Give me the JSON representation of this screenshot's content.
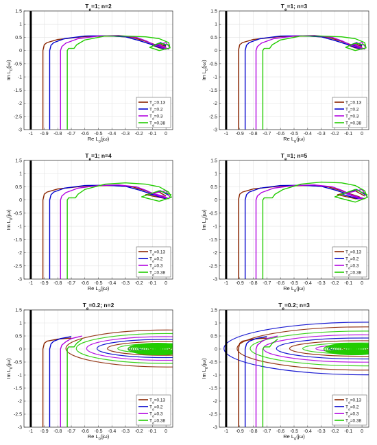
{
  "figure": {
    "xlabel": "Re L",
    "xlabel_sub": "0",
    "xlabel_tail": "(jω)",
    "ylabel": "Im L",
    "ylabel_sub": "0",
    "ylabel_tail": "(jω)",
    "legend_prefix": "T",
    "legend_sub": "d"
  },
  "chart_data": [
    {
      "type": "line",
      "title_main": "T",
      "title_sub": "e",
      "title_rest": "=1; n=2",
      "xlim": [
        -1.05,
        0.05
      ],
      "ylim": [
        -3,
        1.5
      ],
      "xticks": [
        "-1",
        "-0.9",
        "-0.8",
        "-0.7",
        "-0.6",
        "-0.5",
        "-0.4",
        "-0.3",
        "-0.2",
        "-0.1",
        "0"
      ],
      "yticks": [
        "1.5",
        "1",
        "0.5",
        "0",
        "-0.5",
        "-1",
        "-1.5",
        "-2",
        "-2.5",
        "-3"
      ],
      "grid": true,
      "legend": "bottom-right",
      "vertical_line_x": -1,
      "series": [
        {
          "name": "=0.13",
          "color": "#8b2500",
          "x": [
            -0.91,
            -0.91,
            -0.9,
            -0.88,
            -0.8,
            -0.6,
            -0.4,
            -0.25,
            -0.15,
            -0.08,
            -0.02,
            0.0,
            -0.05,
            -0.1,
            -0.05,
            0.0
          ],
          "y": [
            -3,
            0.0,
            0.22,
            0.3,
            0.42,
            0.53,
            0.55,
            0.5,
            0.35,
            0.22,
            0.12,
            0.05,
            0.1,
            0.2,
            0.25,
            0.15
          ]
        },
        {
          "name": "=0.2",
          "color": "#0000cc",
          "x": [
            -0.86,
            -0.86,
            -0.85,
            -0.83,
            -0.75,
            -0.6,
            -0.45,
            -0.3,
            -0.2,
            -0.12,
            -0.05,
            0.0,
            -0.03,
            -0.08,
            -0.04,
            0.0
          ],
          "y": [
            -3,
            0.0,
            0.2,
            0.3,
            0.45,
            0.55,
            0.56,
            0.52,
            0.38,
            0.25,
            0.12,
            0.05,
            0.12,
            0.22,
            0.3,
            0.18
          ]
        },
        {
          "name": "=0.3",
          "color": "#b000e0",
          "x": [
            -0.78,
            -0.78,
            -0.77,
            -0.74,
            -0.65,
            -0.5,
            -0.35,
            -0.22,
            -0.14,
            -0.08,
            -0.02,
            0.02,
            -0.02,
            -0.06,
            0.0,
            0.03
          ],
          "y": [
            -3,
            0.0,
            0.15,
            0.28,
            0.45,
            0.55,
            0.57,
            0.5,
            0.35,
            0.2,
            0.1,
            0.05,
            0.15,
            0.22,
            0.3,
            0.1
          ]
        },
        {
          "name": "=0.38",
          "color": "#22cc00",
          "x": [
            -0.73,
            -0.73,
            -0.72,
            -0.68,
            -0.66,
            -0.6,
            -0.45,
            -0.3,
            -0.15,
            -0.05,
            0.02,
            0.03,
            -0.05,
            -0.12,
            -0.05,
            0.03
          ],
          "y": [
            -3,
            0.0,
            0.08,
            0.08,
            0.22,
            0.4,
            0.55,
            0.55,
            0.52,
            0.45,
            0.3,
            0.1,
            0.0,
            0.12,
            0.28,
            0.2
          ]
        }
      ]
    },
    {
      "type": "line",
      "title_main": "T",
      "title_sub": "e",
      "title_rest": "=1; n=3",
      "xlim": [
        -1.05,
        0.05
      ],
      "ylim": [
        -3,
        1.5
      ],
      "xticks": [
        "-1",
        "-0.9",
        "-0.8",
        "-0.7",
        "-0.6",
        "-0.5",
        "-0.4",
        "-0.3",
        "-0.2",
        "-0.1",
        "0"
      ],
      "yticks": [
        "1.5",
        "1",
        "0.5",
        "0",
        "-0.5",
        "-1",
        "-1.5",
        "-2",
        "-2.5",
        "-3"
      ],
      "grid": true,
      "legend": "bottom-right",
      "vertical_line_x": -1,
      "series": [
        {
          "name": "=0.13",
          "color": "#8b2500",
          "x": [
            -0.91,
            -0.91,
            -0.9,
            -0.88,
            -0.8,
            -0.6,
            -0.4,
            -0.25,
            -0.15,
            -0.08,
            -0.02,
            0.0,
            -0.05,
            -0.1,
            -0.05,
            0.0
          ],
          "y": [
            -3,
            0.0,
            0.22,
            0.3,
            0.42,
            0.53,
            0.55,
            0.5,
            0.35,
            0.22,
            0.12,
            0.05,
            0.1,
            0.2,
            0.25,
            0.15
          ]
        },
        {
          "name": "=0.2",
          "color": "#0000cc",
          "x": [
            -0.86,
            -0.86,
            -0.85,
            -0.83,
            -0.75,
            -0.6,
            -0.45,
            -0.3,
            -0.2,
            -0.12,
            -0.05,
            0.0,
            -0.03,
            -0.08,
            -0.04,
            0.0
          ],
          "y": [
            -3,
            0.0,
            0.2,
            0.3,
            0.45,
            0.55,
            0.56,
            0.52,
            0.38,
            0.25,
            0.12,
            0.05,
            0.12,
            0.22,
            0.3,
            0.18
          ]
        },
        {
          "name": "=0.3",
          "color": "#b000e0",
          "x": [
            -0.78,
            -0.78,
            -0.77,
            -0.74,
            -0.65,
            -0.5,
            -0.35,
            -0.22,
            -0.14,
            -0.08,
            -0.02,
            0.02,
            -0.02,
            -0.06,
            0.0,
            0.03
          ],
          "y": [
            -3,
            0.0,
            0.15,
            0.28,
            0.45,
            0.55,
            0.57,
            0.5,
            0.35,
            0.2,
            0.1,
            0.05,
            0.15,
            0.22,
            0.3,
            0.1
          ]
        },
        {
          "name": "=0.38",
          "color": "#22cc00",
          "x": [
            -0.73,
            -0.73,
            -0.72,
            -0.68,
            -0.66,
            -0.6,
            -0.45,
            -0.3,
            -0.15,
            -0.05,
            0.02,
            0.03,
            -0.05,
            -0.12,
            -0.05,
            0.03
          ],
          "y": [
            -3,
            0.0,
            0.08,
            0.08,
            0.22,
            0.4,
            0.55,
            0.55,
            0.52,
            0.45,
            0.3,
            0.1,
            0.0,
            0.12,
            0.28,
            0.2
          ]
        }
      ]
    },
    {
      "type": "line",
      "title_main": "T",
      "title_sub": "e",
      "title_rest": "=1; n=4",
      "xlim": [
        -1.05,
        0.05
      ],
      "ylim": [
        -3,
        1.5
      ],
      "xticks": [
        "-1",
        "-0.9",
        "-0.8",
        "-0.7",
        "-0.6",
        "-0.5",
        "-0.4",
        "-0.3",
        "-0.2",
        "-0.1",
        "0"
      ],
      "yticks": [
        "1.5",
        "1",
        "0.5",
        "0",
        "-0.5",
        "-1",
        "-1.5",
        "-2",
        "-2.5",
        "-3"
      ],
      "grid": true,
      "legend": "bottom-right",
      "vertical_line_x": -1,
      "series": [
        {
          "name": "=0.13",
          "color": "#8b2500",
          "x": [
            -0.91,
            -0.91,
            -0.9,
            -0.88,
            -0.8,
            -0.6,
            -0.4,
            -0.25,
            -0.15,
            -0.08,
            -0.02,
            0.0,
            -0.05,
            -0.15,
            -0.05,
            0.0
          ],
          "y": [
            -3,
            0.0,
            0.22,
            0.3,
            0.42,
            0.53,
            0.55,
            0.5,
            0.35,
            0.22,
            0.12,
            0.05,
            0.1,
            0.2,
            0.3,
            0.15
          ]
        },
        {
          "name": "=0.2",
          "color": "#0000cc",
          "x": [
            -0.86,
            -0.86,
            -0.85,
            -0.83,
            -0.75,
            -0.6,
            -0.45,
            -0.3,
            -0.2,
            -0.12,
            -0.05,
            0.0,
            -0.03,
            -0.12,
            -0.04,
            0.02
          ],
          "y": [
            -3,
            0.0,
            0.2,
            0.3,
            0.45,
            0.55,
            0.56,
            0.52,
            0.38,
            0.25,
            0.12,
            0.05,
            0.12,
            0.22,
            0.35,
            0.18
          ]
        },
        {
          "name": "=0.3",
          "color": "#b000e0",
          "x": [
            -0.78,
            -0.78,
            -0.77,
            -0.74,
            -0.65,
            -0.5,
            -0.35,
            -0.22,
            -0.14,
            -0.08,
            -0.02,
            0.02,
            -0.02,
            -0.1,
            0.0,
            0.03
          ],
          "y": [
            -3,
            0.0,
            0.15,
            0.28,
            0.45,
            0.55,
            0.57,
            0.5,
            0.35,
            0.2,
            0.1,
            0.05,
            0.15,
            0.25,
            0.35,
            0.1
          ]
        },
        {
          "name": "=0.38",
          "color": "#22cc00",
          "x": [
            -0.73,
            -0.73,
            -0.72,
            -0.67,
            -0.65,
            -0.6,
            -0.45,
            -0.3,
            -0.15,
            -0.05,
            0.02,
            0.04,
            -0.05,
            -0.18,
            -0.05,
            0.04
          ],
          "y": [
            -3,
            0.0,
            0.08,
            0.08,
            0.22,
            0.4,
            0.6,
            0.65,
            0.6,
            0.5,
            0.3,
            0.1,
            -0.05,
            0.12,
            0.35,
            0.2
          ]
        }
      ]
    },
    {
      "type": "line",
      "title_main": "T",
      "title_sub": "e",
      "title_rest": "=1; n=5",
      "xlim": [
        -1.05,
        0.05
      ],
      "ylim": [
        -3,
        1.5
      ],
      "xticks": [
        "-1",
        "-0.9",
        "-0.8",
        "-0.7",
        "-0.6",
        "-0.5",
        "-0.4",
        "-0.3",
        "-0.2",
        "-0.1",
        "0"
      ],
      "yticks": [
        "1.5",
        "1",
        "0.5",
        "0",
        "-0.5",
        "-1",
        "-1.5",
        "-2",
        "-2.5",
        "-3"
      ],
      "grid": true,
      "legend": "bottom-right",
      "vertical_line_x": -1,
      "series": [
        {
          "name": "=0.13",
          "color": "#8b2500",
          "x": [
            -0.91,
            -0.91,
            -0.9,
            -0.88,
            -0.8,
            -0.6,
            -0.4,
            -0.25,
            -0.15,
            -0.08,
            -0.02,
            0.0,
            -0.05,
            -0.18,
            -0.05,
            0.02
          ],
          "y": [
            -3,
            0.0,
            0.22,
            0.3,
            0.42,
            0.53,
            0.55,
            0.5,
            0.35,
            0.22,
            0.12,
            0.05,
            0.05,
            0.2,
            0.35,
            0.15
          ]
        },
        {
          "name": "=0.2",
          "color": "#0000cc",
          "x": [
            -0.86,
            -0.86,
            -0.85,
            -0.83,
            -0.75,
            -0.6,
            -0.45,
            -0.3,
            -0.2,
            -0.12,
            -0.05,
            0.0,
            -0.03,
            -0.15,
            -0.04,
            0.03
          ],
          "y": [
            -3,
            0.0,
            0.2,
            0.3,
            0.45,
            0.55,
            0.56,
            0.52,
            0.38,
            0.25,
            0.12,
            0.05,
            0.05,
            0.22,
            0.4,
            0.18
          ]
        },
        {
          "name": "=0.3",
          "color": "#b000e0",
          "x": [
            -0.78,
            -0.78,
            -0.77,
            -0.74,
            -0.65,
            -0.5,
            -0.35,
            -0.22,
            -0.14,
            -0.08,
            -0.02,
            0.02,
            -0.02,
            -0.12,
            0.0,
            0.04
          ],
          "y": [
            -3,
            0.0,
            0.15,
            0.28,
            0.45,
            0.55,
            0.57,
            0.5,
            0.35,
            0.2,
            0.1,
            0.05,
            0.05,
            0.25,
            0.4,
            0.1
          ]
        },
        {
          "name": "=0.38",
          "color": "#22cc00",
          "x": [
            -0.73,
            -0.73,
            -0.72,
            -0.66,
            -0.64,
            -0.58,
            -0.45,
            -0.3,
            -0.15,
            -0.05,
            0.02,
            0.04,
            -0.05,
            -0.2,
            -0.05,
            0.04
          ],
          "y": [
            -3,
            0.0,
            0.08,
            0.08,
            0.22,
            0.4,
            0.6,
            0.68,
            0.65,
            0.55,
            0.35,
            0.1,
            -0.08,
            0.12,
            0.4,
            0.2
          ]
        }
      ]
    },
    {
      "type": "line",
      "title_main": "T",
      "title_sub": "e",
      "title_rest": "=0.2; n=2",
      "xlim": [
        -1.05,
        0.05
      ],
      "ylim": [
        -3,
        1.5
      ],
      "xticks": [
        "-1",
        "-0.9",
        "-0.8",
        "-0.7",
        "-0.6",
        "-0.5",
        "-0.4",
        "-0.3",
        "-0.2",
        "-0.1",
        "0"
      ],
      "yticks": [
        "1.5",
        "1",
        "0.5",
        "0",
        "-0.5",
        "-1",
        "-1.5",
        "-2",
        "-2.5",
        "-3"
      ],
      "grid": true,
      "legend": "bottom-right",
      "vertical_line_x": -1,
      "spiral": {
        "count": 9,
        "center_x": -0.05,
        "max_rx": 0.75,
        "max_ry": 0.65
      },
      "series": [
        {
          "name": "=0.13",
          "color": "#8b2500",
          "x": [
            -0.91,
            -0.91,
            -0.9,
            -0.88,
            -0.8,
            -0.7
          ],
          "y": [
            -3,
            0.0,
            0.22,
            0.3,
            0.38,
            0.42
          ]
        },
        {
          "name": "=0.2",
          "color": "#0000cc",
          "x": [
            -0.86,
            -0.86,
            -0.85,
            -0.83,
            -0.78,
            -0.7
          ],
          "y": [
            -3,
            0.0,
            0.2,
            0.3,
            0.4,
            0.48
          ]
        },
        {
          "name": "=0.3",
          "color": "#b000e0",
          "x": [
            -0.78,
            -0.78,
            -0.77,
            -0.74,
            -0.7,
            -0.62
          ],
          "y": [
            -3,
            0.0,
            0.15,
            0.28,
            0.4,
            0.5
          ]
        },
        {
          "name": "=0.38",
          "color": "#22cc00",
          "x": [
            -0.73,
            -0.73,
            -0.72,
            -0.68,
            -0.66,
            -0.62
          ],
          "y": [
            -3,
            0.0,
            0.08,
            0.08,
            0.22,
            0.38
          ]
        }
      ]
    },
    {
      "type": "line",
      "title_main": "T",
      "title_sub": "e",
      "title_rest": "=0.2; n=3",
      "xlim": [
        -1.05,
        0.05
      ],
      "ylim": [
        -3,
        1.5
      ],
      "xticks": [
        "-1",
        "-0.9",
        "-0.8",
        "-0.7",
        "-0.6",
        "-0.5",
        "-0.4",
        "-0.3",
        "-0.2",
        "-0.1",
        "0"
      ],
      "yticks": [
        "1.5",
        "1",
        "0.5",
        "0",
        "-0.5",
        "-1",
        "-1.5",
        "-2",
        "-2.5",
        "-3"
      ],
      "grid": true,
      "legend": "bottom-right",
      "vertical_line_x": -1,
      "spiral": {
        "count": 10,
        "center_x": -0.05,
        "max_rx": 1.05,
        "max_ry": 0.95
      },
      "series": [
        {
          "name": "=0.13",
          "color": "#8b2500",
          "x": [
            -0.91,
            -0.91,
            -0.9,
            -0.88,
            -0.8,
            -0.7
          ],
          "y": [
            -3,
            0.0,
            0.22,
            0.3,
            0.38,
            0.42
          ]
        },
        {
          "name": "=0.2",
          "color": "#0000cc",
          "x": [
            -0.86,
            -0.86,
            -0.85,
            -0.83,
            -0.78,
            -0.7
          ],
          "y": [
            -3,
            0.0,
            0.2,
            0.3,
            0.4,
            0.48
          ]
        },
        {
          "name": "=0.3",
          "color": "#b000e0",
          "x": [
            -0.78,
            -0.78,
            -0.77,
            -0.74,
            -0.7,
            -0.62
          ],
          "y": [
            -3,
            0.0,
            0.15,
            0.28,
            0.4,
            0.5
          ]
        },
        {
          "name": "=0.38",
          "color": "#22cc00",
          "x": [
            -0.73,
            -0.73,
            -0.72,
            -0.68,
            -0.66,
            -0.62
          ],
          "y": [
            -3,
            0.0,
            0.08,
            0.08,
            0.22,
            0.38
          ]
        }
      ]
    }
  ]
}
